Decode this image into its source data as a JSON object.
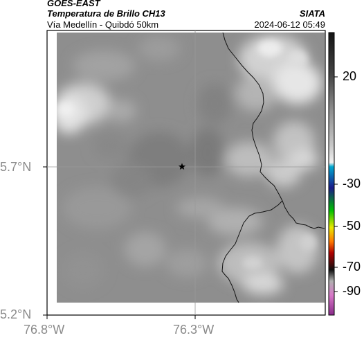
{
  "header": {
    "satellite": "GOES-EAST",
    "product": "Temperatura de Brillo CH13",
    "institution": "SIATA",
    "route": "Vía Medellín - Quibdó 50km",
    "datetime": "2024-06-12 05:49"
  },
  "map": {
    "lat_ticks": [
      "5.7°N",
      "5.2°N"
    ],
    "lon_ticks": [
      "76.8°W",
      "76.3°W"
    ],
    "marker": "star",
    "background_color": "#8e8e8e",
    "border_color": "#111111"
  },
  "colorbar": {
    "labels": [
      "20",
      "-30",
      "-50",
      "-70",
      "-90"
    ],
    "stops": [
      {
        "color": "#141414"
      },
      {
        "color": "#454545"
      },
      {
        "color": "#8c8c8c"
      },
      {
        "color": "#c8c8c8"
      },
      {
        "color": "#f0f0f0"
      },
      {
        "color": "#00a8d0"
      },
      {
        "color": "#1a1a8a"
      },
      {
        "color": "#00c000"
      },
      {
        "color": "#e8e800"
      },
      {
        "color": "#ff7800"
      },
      {
        "color": "#b00000"
      },
      {
        "color": "#101010"
      },
      {
        "color": "#b0b0b0"
      },
      {
        "color": "#d878c8"
      },
      {
        "color": "#8a2a8a"
      }
    ]
  }
}
